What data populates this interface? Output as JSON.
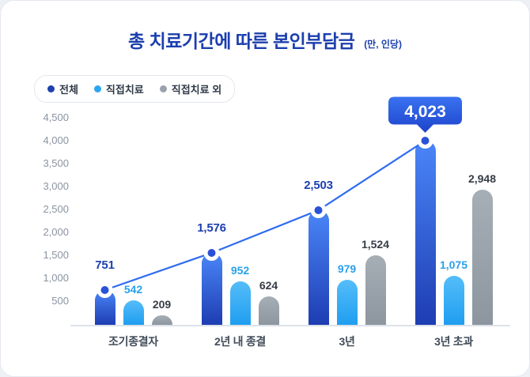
{
  "title": "총 치료기간에 따른 본인부담금",
  "title_unit": "(만, 인당)",
  "colors": {
    "title": "#1c3fae",
    "line": "#2e6bf0",
    "marker_inner": "#2a52d8",
    "axis_text": "#8a94a2",
    "category_text": "#414c59",
    "axis_line": "#dde2e9",
    "callout_top": "#3a74f2",
    "callout_bottom": "#1d41c9"
  },
  "chart_data": {
    "type": "bar",
    "subtype": "grouped-bars-with-line-overlay-on-first-series",
    "title": "총 치료기간에 따른 본인부담금",
    "unit_note": "(만, 인당)",
    "categories": [
      "조기종결자",
      "2년 내 종결",
      "3년",
      "3년 초과"
    ],
    "series": [
      {
        "name": "전체",
        "kind": "bar+line",
        "values": [
          751,
          1576,
          2503,
          4023
        ],
        "bar_color_top": "#4a86f8",
        "bar_color_bottom": "#1e3db2",
        "dot_color": "#1e3fae",
        "label_color": "#1c3fae"
      },
      {
        "name": "직접치료",
        "kind": "bar",
        "values": [
          542,
          952,
          979,
          1075
        ],
        "bar_color_top": "#55bdf9",
        "bar_color_bottom": "#1f9ef0",
        "dot_color": "#2ba6f0",
        "label_color": "#2aa0ec"
      },
      {
        "name": "직접치료 외",
        "kind": "bar",
        "values": [
          209,
          624,
          1524,
          2948
        ],
        "bar_color_top": "#a6aeb6",
        "bar_color_bottom": "#8d959f",
        "dot_color": "#99a1ab",
        "label_color": "#363c45"
      }
    ],
    "highlight": {
      "series_index": 0,
      "category_index": 3,
      "label": "4,023"
    },
    "line_color": "#2e6bf0",
    "ylim": [
      0,
      4500
    ],
    "yticks": [
      4500,
      4000,
      3500,
      3000,
      2500,
      2000,
      1500,
      1000,
      500
    ],
    "grid": false,
    "legend_position": "top-left"
  }
}
